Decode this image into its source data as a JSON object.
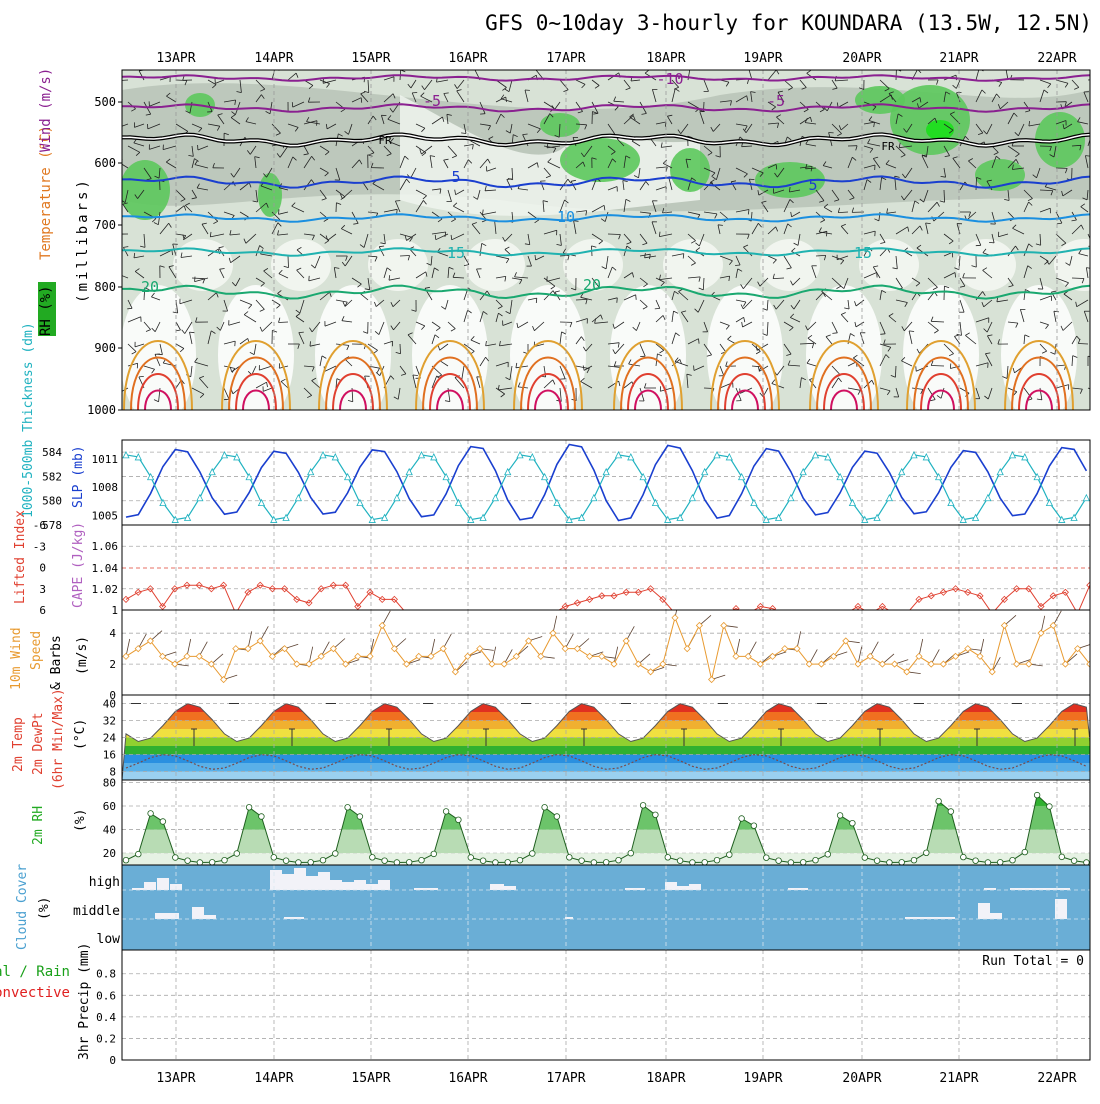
{
  "title": "GFS 0~10day 3-hourly for KOUNDARA (13.5W, 12.5N)",
  "dates": [
    "13APR",
    "14APR",
    "15APR",
    "16APR",
    "17APR",
    "18APR",
    "19APR",
    "20APR",
    "21APR",
    "22APR"
  ],
  "colors": {
    "grid": "#aaaaaa",
    "thickness": "#1a3fcf",
    "slp": "#20b2c0",
    "lifted": "#e04030",
    "wind": "#e89a30",
    "dewpt": "#555555",
    "rh2m": "#1aaa1a",
    "cloud": "#6aaed6",
    "rain": "#1aa01a",
    "convective": "#e02020"
  },
  "panel_upper": {
    "y_label": "(millibars)",
    "legend": [
      "Wind (m/s)",
      "Temperature (°C)",
      "RH (%)"
    ],
    "ticks": [
      "500",
      "600",
      "700",
      "800",
      "900",
      "1000"
    ],
    "isotherm_labels": [
      "-10",
      "-5",
      "-5",
      "FR",
      "FR",
      "5",
      "5",
      "10",
      "15",
      "15",
      "20",
      "20"
    ]
  },
  "panel_thickness": {
    "left_label": "1000-500mb Thickness (dm)",
    "right_label": "SLP (mb)",
    "left_ticks": [
      "584",
      "582",
      "580",
      "578"
    ],
    "right_ticks": [
      "1011",
      "1008",
      "1005"
    ]
  },
  "panel_cape": {
    "left_label": "Lifted Index",
    "right_label": "CAPE (J/kg)",
    "left_ticks": [
      "-6",
      "-3",
      "0",
      "3",
      "6"
    ],
    "right_ticks": [
      "1.06",
      "1.04",
      "1.02",
      "1"
    ]
  },
  "panel_wind": {
    "label_a": "10m Wind",
    "label_b": "Speed",
    "label_c": "& Barbs",
    "unit": "(m/s)",
    "ticks": [
      "4",
      "2",
      "0"
    ]
  },
  "panel_temp": {
    "label_a": "2m Temp",
    "label_b": "2m DewPt",
    "label_c": "(6hr Min/Max)",
    "unit": "(°C)",
    "ticks": [
      "40",
      "32",
      "24",
      "16",
      "8"
    ]
  },
  "panel_rh": {
    "label": "2m RH",
    "unit": "(%)",
    "ticks": [
      "80",
      "60",
      "40",
      "20"
    ]
  },
  "panel_cloud": {
    "label": "Cloud Cover",
    "unit": "(%)",
    "ticks": [
      "high",
      "middle",
      "low"
    ]
  },
  "panel_precip": {
    "label_a": "tal / Rain",
    "label_b": "Convective",
    "label_c": "3hr Precip (mm)",
    "ticks": [
      "0.8",
      "0.6",
      "0.4",
      "0.2",
      "0"
    ],
    "run_total": "Run Total = 0"
  },
  "chart_data": [
    {
      "type": "line",
      "title": "1000-500mb Thickness (dm) / SLP (mb)",
      "x": [
        "13APR",
        "14APR",
        "15APR",
        "16APR",
        "17APR",
        "18APR",
        "19APR",
        "20APR",
        "21APR",
        "22APR"
      ],
      "series": [
        {
          "name": "Thickness (dm)",
          "values": [
            579.5,
            584.5,
            579.5,
            584.5,
            580.0,
            584.5,
            579.0,
            584.0,
            578.5,
            584.0
          ]
        },
        {
          "name": "SLP (mb)",
          "values": [
            1011.5,
            1004.5,
            1011.5,
            1004.5,
            1012.0,
            1004.0,
            1011.5,
            1004.0,
            1011.0,
            1005.0
          ]
        }
      ],
      "ylim_left": [
        578,
        585
      ],
      "ylim_right": [
        1004,
        1013
      ]
    },
    {
      "type": "line",
      "title": "2m Temp / DewPt (°C)",
      "series": [
        {
          "name": "2m Temp max",
          "values": [
            39,
            40,
            40,
            40,
            40,
            41,
            40,
            40,
            40,
            40
          ]
        },
        {
          "name": "2m Temp min",
          "values": [
            23,
            24,
            24,
            24,
            24,
            24,
            24,
            24,
            24,
            24
          ]
        },
        {
          "name": "2m DewPt",
          "values": [
            10,
            16,
            10,
            15,
            12,
            16,
            10,
            16,
            9,
            16
          ]
        }
      ],
      "ylim": [
        4,
        44
      ]
    },
    {
      "type": "area",
      "title": "2m RH (%)",
      "series": [
        {
          "name": "2m RH max",
          "values": [
            60,
            66,
            66,
            62,
            66,
            68,
            55,
            58,
            72,
            78
          ]
        },
        {
          "name": "2m RH min",
          "values": [
            15,
            12,
            14,
            12,
            10,
            12,
            12,
            10,
            12,
            12
          ]
        }
      ],
      "ylim": [
        10,
        80
      ]
    },
    {
      "type": "bar",
      "title": "3hr Precip (mm)",
      "series": [
        {
          "name": "3hr Precip",
          "values": [
            0,
            0,
            0,
            0,
            0,
            0,
            0,
            0,
            0,
            0
          ]
        }
      ],
      "ylim": [
        0,
        1
      ]
    }
  ]
}
